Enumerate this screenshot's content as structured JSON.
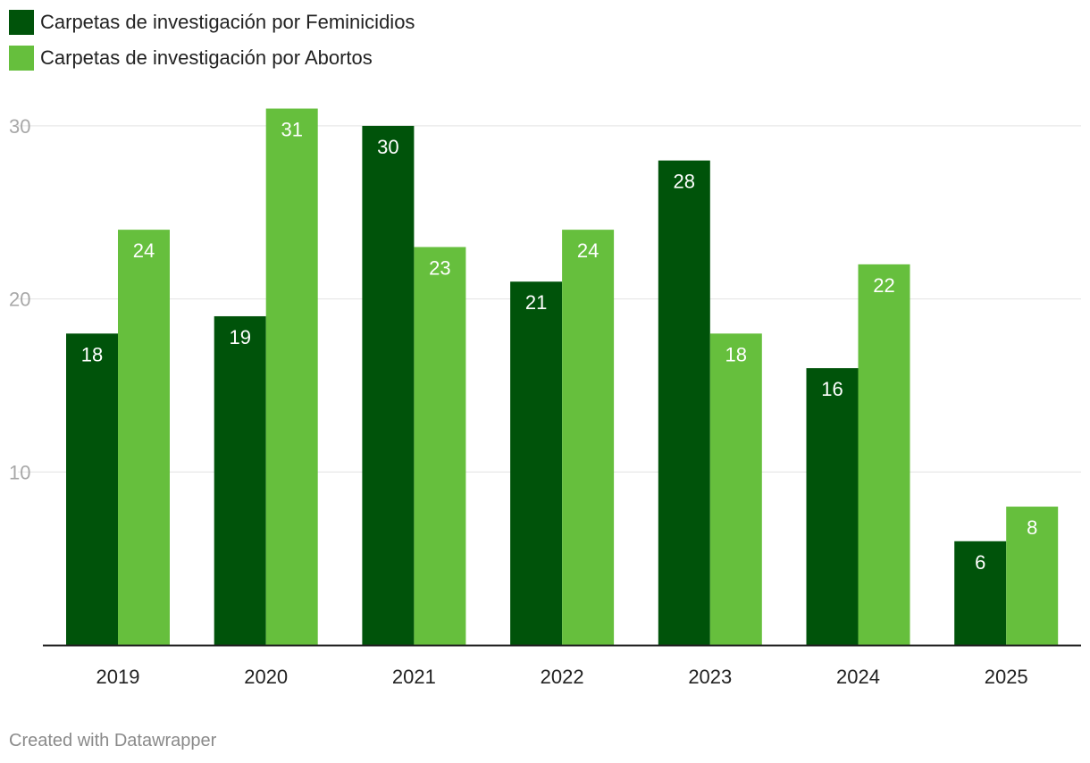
{
  "legend": {
    "items": [
      {
        "label": "Carpetas de investigación por Feminicidios",
        "color": "#00530a"
      },
      {
        "label": "Carpetas de investigación por Abortos",
        "color": "#66bf3d"
      }
    ]
  },
  "footer": {
    "credit": "Created with Datawrapper"
  },
  "chart_data": {
    "type": "bar",
    "categories": [
      "2019",
      "2020",
      "2021",
      "2022",
      "2023",
      "2024",
      "2025"
    ],
    "series": [
      {
        "name": "Carpetas de investigación por Feminicidios",
        "values": [
          18,
          19,
          30,
          21,
          28,
          16,
          6
        ],
        "color": "#00530a"
      },
      {
        "name": "Carpetas de investigación por Abortos",
        "values": [
          24,
          31,
          23,
          24,
          18,
          22,
          8
        ],
        "color": "#66bf3d"
      }
    ],
    "title": "",
    "xlabel": "",
    "ylabel": "",
    "ylim": [
      0,
      30
    ],
    "yticks": [
      10,
      20,
      30
    ],
    "grid": true,
    "legend_position": "top-left",
    "data_labels": true
  }
}
